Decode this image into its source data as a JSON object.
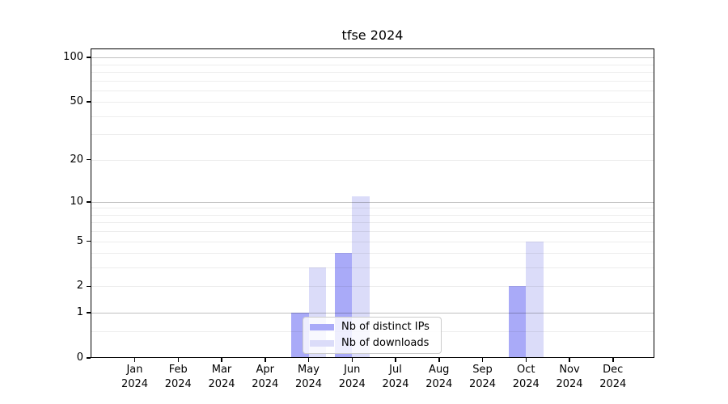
{
  "chart_data": {
    "type": "bar",
    "title": "tfse 2024",
    "categories": [
      "Jan",
      "Feb",
      "Mar",
      "Apr",
      "May",
      "Jun",
      "Jul",
      "Aug",
      "Sep",
      "Oct",
      "Nov",
      "Dec"
    ],
    "x_year_label": "2024",
    "series": [
      {
        "name": "Nb of distinct IPs",
        "color": "#a9aaf8",
        "values": [
          0,
          0,
          0,
          0,
          1,
          4,
          0,
          0,
          0,
          2,
          0,
          0
        ]
      },
      {
        "name": "Nb of downloads",
        "color": "#dbdcf9",
        "values": [
          0,
          0,
          0,
          0,
          3,
          11,
          0,
          0,
          0,
          5,
          0,
          0
        ]
      }
    ],
    "y_axis": {
      "scale": "log1p",
      "tick_labels": [
        0,
        1,
        2,
        5,
        10,
        20,
        50,
        100
      ],
      "major_gridlines": [
        1,
        10,
        100
      ],
      "minor_gridlines": [
        0.5,
        2,
        3,
        4,
        5,
        6,
        7,
        8,
        9,
        20,
        30,
        40,
        50,
        60,
        70,
        80,
        90
      ],
      "top_value": 115
    },
    "legend_position": "lower center",
    "grid": true,
    "background_color": "#ffffff"
  }
}
